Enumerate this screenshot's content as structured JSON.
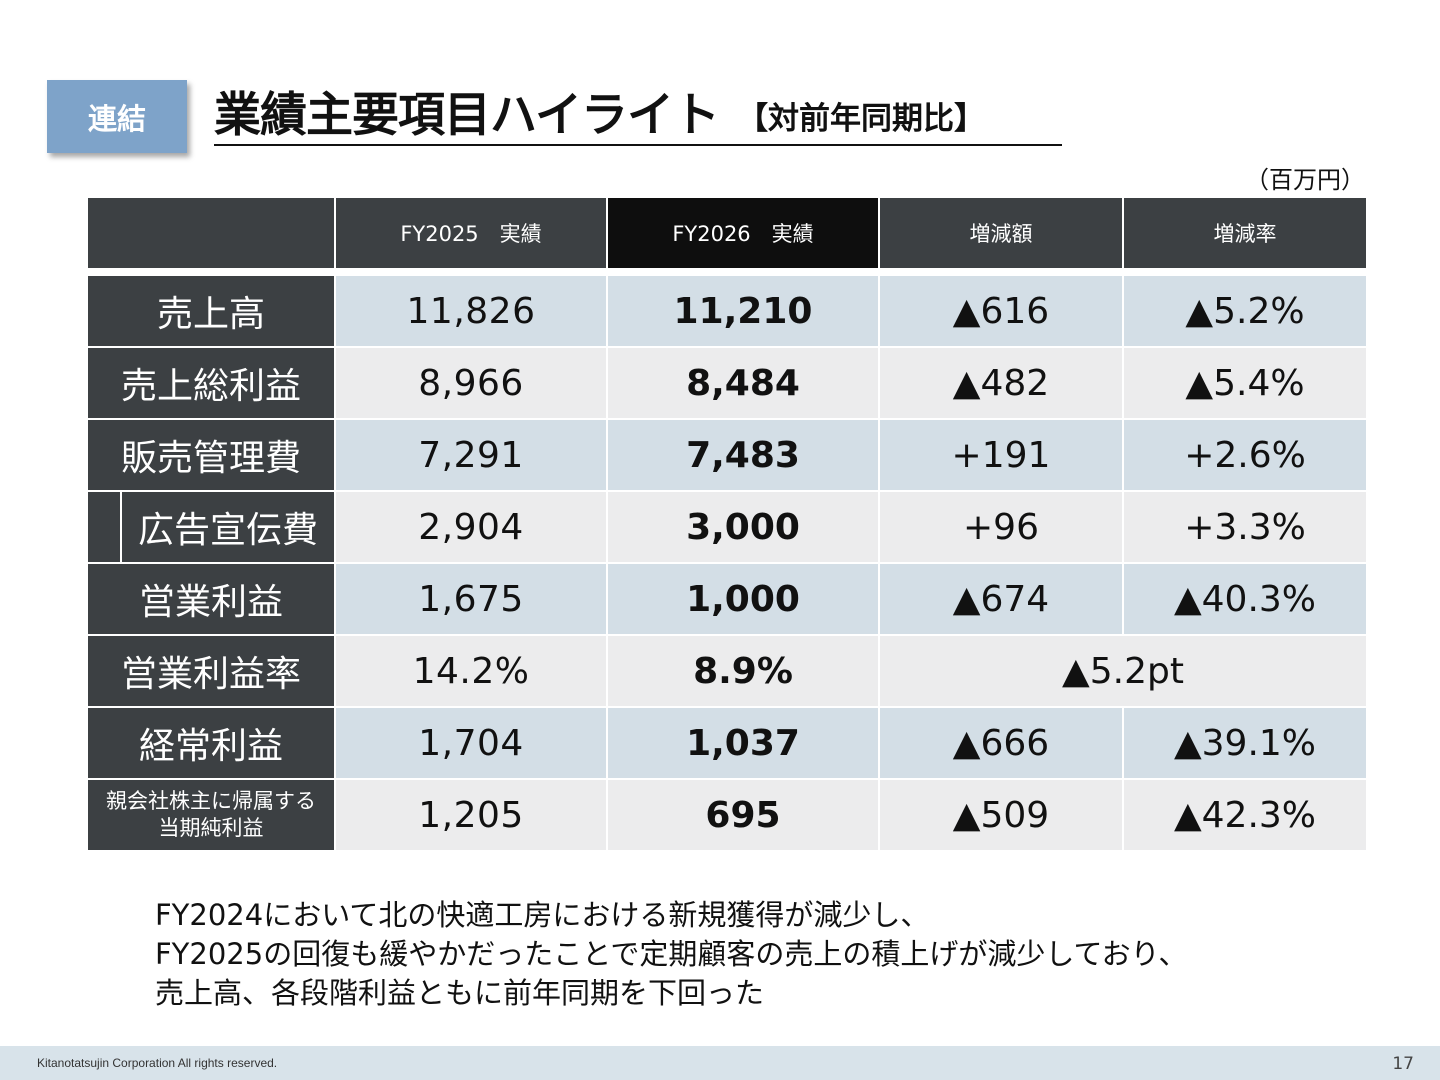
{
  "header": {
    "badge": "連結",
    "title": "業績主要項目ハイライト",
    "subtitle": "【対前年同期比】",
    "unit": "（百万円）"
  },
  "table": {
    "columns": [
      "",
      "FY2025　実績",
      "FY2026　実績",
      "増減額",
      "増減率"
    ],
    "rows": [
      {
        "label": "売上高",
        "fy2025": "11,826",
        "fy2026": "11,210",
        "change": "▲616",
        "rate": "▲5.2%"
      },
      {
        "label": "売上総利益",
        "fy2025": "8,966",
        "fy2026": "8,484",
        "change": "▲482",
        "rate": "▲5.4%"
      },
      {
        "label": "販売管理費",
        "fy2025": "7,291",
        "fy2026": "7,483",
        "change": "+191",
        "rate": "+2.6%"
      },
      {
        "label": "広告宣伝費",
        "fy2025": "2,904",
        "fy2026": "3,000",
        "change": "+96",
        "rate": "+3.3%"
      },
      {
        "label": "営業利益",
        "fy2025": "1,675",
        "fy2026": "1,000",
        "change": "▲674",
        "rate": "▲40.3%"
      },
      {
        "label": "営業利益率",
        "fy2025": "14.2%",
        "fy2026": "8.9%",
        "change": "▲5.2pt"
      },
      {
        "label": "経常利益",
        "fy2025": "1,704",
        "fy2026": "1,037",
        "change": "▲666",
        "rate": "▲39.1%"
      },
      {
        "label_line1": "親会社株主に帰属する",
        "label_line2": "当期純利益",
        "fy2025": "1,205",
        "fy2026": "695",
        "change": "▲509",
        "rate": "▲42.3%"
      }
    ]
  },
  "comment": {
    "line1": "FY2024において北の快適工房における新規獲得が減少し、",
    "line2": "FY2025の回復も緩やかだったことで定期顧客の売上の積上げが減少しており、",
    "line3": "売上高、各段階利益ともに前年同期を下回った"
  },
  "footer": {
    "copyright": "Kitanotatsujin Corporation All rights reserved.",
    "page": "17"
  },
  "colors": {
    "dark_cell": "#3c4043",
    "current_header": "#0e0e0e",
    "blue_row": "#d3dee6",
    "gray_row": "#ececed",
    "badge": "#7ea3c9",
    "footer": "#d8e3ea"
  }
}
